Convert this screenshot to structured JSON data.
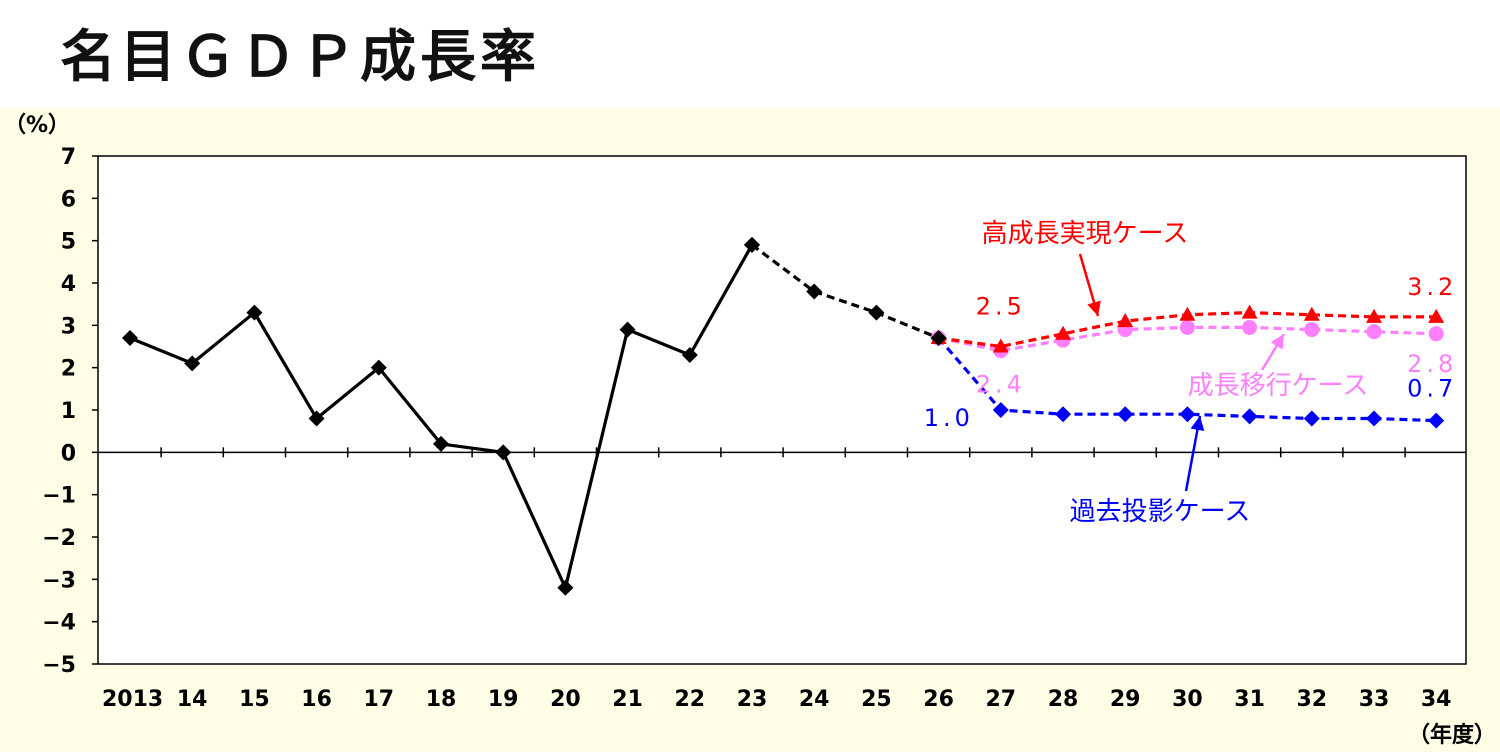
{
  "title": "名目ＧＤＰ成長率",
  "chart_data": {
    "type": "line",
    "y_unit_label": "（%）",
    "x_unit_label": "（年度）",
    "ylim": [
      -5,
      7
    ],
    "y_ticks": [
      "7",
      "6",
      "5",
      "4",
      "3",
      "2",
      "1",
      "0",
      "−1",
      "−2",
      "−3",
      "−4",
      "−5"
    ],
    "y_tick_values": [
      7,
      6,
      5,
      4,
      3,
      2,
      1,
      0,
      -1,
      -2,
      -3,
      -4,
      -5
    ],
    "categories": [
      "2013",
      "14",
      "15",
      "16",
      "17",
      "18",
      "19",
      "20",
      "21",
      "22",
      "23",
      "24",
      "25",
      "26",
      "27",
      "28",
      "29",
      "30",
      "31",
      "32",
      "33",
      "34"
    ],
    "grid": false,
    "series": [
      {
        "name": "",
        "style": "solid",
        "marker": "diamond",
        "color": "#000000",
        "values": [
          2.7,
          2.1,
          3.3,
          0.8,
          2.0,
          0.2,
          0.0,
          -3.2,
          2.9,
          2.3,
          4.9,
          null,
          null,
          null,
          null,
          null,
          null,
          null,
          null,
          null,
          null,
          null
        ]
      },
      {
        "name": "",
        "style": "dashed",
        "marker": "diamond",
        "color": "#000000",
        "values": [
          null,
          null,
          null,
          null,
          null,
          null,
          null,
          null,
          null,
          null,
          4.9,
          3.8,
          3.3,
          2.7,
          null,
          null,
          null,
          null,
          null,
          null,
          null,
          null
        ]
      },
      {
        "name": "高成長実現ケース",
        "style": "dashed",
        "marker": "triangle",
        "color": "#ff0000",
        "values": [
          null,
          null,
          null,
          null,
          null,
          null,
          null,
          null,
          null,
          null,
          null,
          null,
          null,
          2.7,
          2.5,
          2.8,
          3.1,
          3.25,
          3.3,
          3.25,
          3.2,
          3.2
        ]
      },
      {
        "name": "成長移行ケース",
        "style": "dashed",
        "marker": "circle",
        "color": "#ff7fff",
        "values": [
          null,
          null,
          null,
          null,
          null,
          null,
          null,
          null,
          null,
          null,
          null,
          null,
          null,
          2.7,
          2.4,
          2.65,
          2.9,
          2.95,
          2.95,
          2.9,
          2.85,
          2.8
        ]
      },
      {
        "name": "過去投影ケース",
        "style": "dashed",
        "marker": "diamond",
        "color": "#0000ff",
        "values": [
          null,
          null,
          null,
          null,
          null,
          null,
          null,
          null,
          null,
          null,
          null,
          null,
          null,
          2.7,
          1.0,
          0.9,
          0.9,
          0.9,
          0.85,
          0.8,
          0.8,
          0.75
        ]
      }
    ],
    "data_labels": [
      {
        "text": "2.5",
        "series": 2,
        "x": "27",
        "color": "#ff0000"
      },
      {
        "text": "3.2",
        "series": 2,
        "x": "34",
        "color": "#ff0000"
      },
      {
        "text": "2.4",
        "series": 3,
        "x": "27",
        "color": "#ff7fff"
      },
      {
        "text": "2.8",
        "series": 3,
        "x": "34",
        "color": "#ff7fff"
      },
      {
        "text": "1.0",
        "series": 4,
        "x": "27",
        "color": "#0000ff"
      },
      {
        "text": "0.7",
        "series": 4,
        "x": "34",
        "color": "#0000ff"
      }
    ],
    "annotations": [
      {
        "text": "高成長実現ケース",
        "series": 2,
        "color": "#ff0000"
      },
      {
        "text": "成長移行ケース",
        "series": 3,
        "color": "#ff7fff"
      },
      {
        "text": "過去投影ケース",
        "series": 4,
        "color": "#0000ff"
      }
    ]
  }
}
